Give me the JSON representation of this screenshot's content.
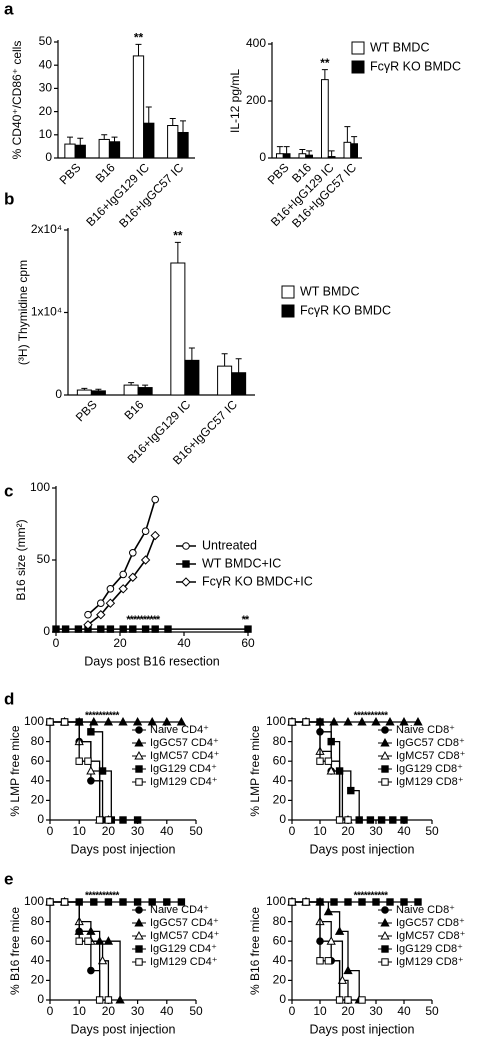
{
  "chart_data": [
    {
      "type": "bar",
      "panel": "a",
      "y_label": "% CD40⁺/CD86⁺ cells",
      "categories": [
        "PBS",
        "B16",
        "B16+IgG129 IC",
        "B16+IgGC57 IC"
      ],
      "series": [
        {
          "color": "#ffffff",
          "values": [
            6,
            8,
            44,
            14
          ],
          "errors": [
            3,
            2,
            5,
            3
          ]
        },
        {
          "color": "#000000",
          "values": [
            5.5,
            7,
            15,
            11
          ],
          "errors": [
            3,
            2,
            7,
            5
          ]
        }
      ],
      "ylim": [
        0,
        50
      ],
      "yticks": [
        0,
        10,
        20,
        30,
        40,
        50
      ],
      "annotations": [
        "**"
      ]
    },
    {
      "type": "bar",
      "y_label": "IL-12 pg/mL",
      "categories": [
        "PBS",
        "B16",
        "B16+IgG129 IC",
        "B16+IgGC57 IC"
      ],
      "series": [
        {
          "name": "WT BMDC",
          "color": "#ffffff",
          "values": [
            15,
            15,
            275,
            55
          ],
          "errors": [
            25,
            15,
            35,
            55
          ]
        },
        {
          "name": "FcγR KO BMDC",
          "color": "#000000",
          "values": [
            15,
            10,
            5,
            50
          ],
          "errors": [
            25,
            15,
            20,
            25
          ]
        }
      ],
      "ylim": [
        0,
        400
      ],
      "yticks": [
        0,
        200,
        400
      ],
      "annotations": [
        "**"
      ]
    },
    {
      "type": "bar",
      "panel": "b",
      "y_label": "(³H) Thymidine cpm",
      "categories": [
        "PBS",
        "B16",
        "B16+IgG129 IC",
        "B16+IgGC57 IC"
      ],
      "series": [
        {
          "name": "WT BMDC",
          "color": "#ffffff",
          "values": [
            600,
            1200,
            16000,
            3500
          ],
          "errors": [
            200,
            300,
            2500,
            1500
          ]
        },
        {
          "name": "FcγR KO BMDC",
          "color": "#000000",
          "values": [
            500,
            900,
            4200,
            2700
          ],
          "errors": [
            200,
            300,
            1500,
            1700
          ]
        }
      ],
      "ylim": [
        0,
        20000
      ],
      "yticks": [
        0,
        {
          "value": 10000,
          "label": "1x10⁴"
        },
        {
          "value": 20000,
          "label": "2x10⁴"
        }
      ],
      "annotations": [
        "**"
      ]
    },
    {
      "type": "line",
      "panel": "c",
      "y_label": "B16 size (mm²)",
      "x_label": "Days post B16 resection",
      "series": [
        {
          "name": "Untreated",
          "color": "#000000",
          "marker": "circle-open",
          "x": [
            10,
            14,
            17,
            21,
            24,
            28,
            31
          ],
          "values": [
            12,
            20,
            30,
            40,
            55,
            70,
            92
          ]
        },
        {
          "name": "WT BMDC+IC",
          "color": "#000000",
          "marker": "square-filled",
          "x": [
            0,
            3,
            7,
            10,
            14,
            17,
            21,
            24,
            28,
            31,
            35,
            60
          ],
          "values": [
            2,
            2,
            2,
            2,
            2,
            2,
            2,
            2,
            2,
            2,
            2,
            2
          ]
        },
        {
          "name": "FcγR KO BMDC+IC",
          "color": "#000000",
          "marker": "diamond-open",
          "x": [
            10,
            14,
            17,
            21,
            24,
            28,
            31
          ],
          "values": [
            5,
            12,
            20,
            30,
            38,
            50,
            67
          ]
        }
      ],
      "xlim": [
        0,
        60
      ],
      "xticks": [
        0,
        20,
        40,
        60
      ],
      "ylim": [
        0,
        100
      ],
      "yticks": [
        0,
        50,
        100
      ],
      "annotations": [
        "**********",
        "**"
      ]
    },
    {
      "type": "survival",
      "panel": "d",
      "y_label": "% LMP free mice",
      "x_label": "Days post injection",
      "series": [
        {
          "name": "Naive CD4⁺",
          "marker": "circle-filled",
          "x": [
            0,
            5,
            10,
            14,
            18,
            20
          ],
          "values": [
            100,
            100,
            80,
            40,
            0,
            0
          ]
        },
        {
          "name": "IgGC57 CD4⁺",
          "marker": "triangle-filled",
          "x": [
            0,
            5,
            10,
            15,
            20,
            25,
            30,
            35,
            40,
            45
          ],
          "values": [
            100,
            100,
            100,
            100,
            100,
            100,
            100,
            100,
            100,
            100
          ]
        },
        {
          "name": "IgMC57 CD4⁺",
          "marker": "triangle-open",
          "x": [
            0,
            5,
            10,
            14,
            17,
            20
          ],
          "values": [
            100,
            100,
            80,
            50,
            0,
            0
          ]
        },
        {
          "name": "IgG129 CD4⁺",
          "marker": "square-filled",
          "x": [
            0,
            5,
            10,
            14,
            18,
            21,
            25,
            30
          ],
          "values": [
            100,
            100,
            100,
            90,
            50,
            0,
            0,
            0
          ]
        },
        {
          "name": "IgM129 CD4⁺",
          "marker": "square-open",
          "x": [
            0,
            5,
            10,
            13,
            17,
            20
          ],
          "values": [
            100,
            100,
            60,
            60,
            0,
            0
          ]
        }
      ],
      "xlim": [
        0,
        50
      ],
      "xticks": [
        0,
        10,
        20,
        30,
        40,
        50
      ],
      "ylim": [
        0,
        100
      ],
      "yticks": [
        0,
        20,
        40,
        60,
        80,
        100
      ],
      "annotations": [
        "**********"
      ]
    },
    {
      "type": "survival",
      "y_label": "% LMP free mice",
      "x_label": "Days post injection",
      "series": [
        {
          "name": "Naive CD8⁺",
          "marker": "circle-filled",
          "x": [
            0,
            5,
            10,
            14,
            17,
            20
          ],
          "values": [
            100,
            100,
            90,
            50,
            0,
            0
          ]
        },
        {
          "name": "IgGC57 CD8⁺",
          "marker": "triangle-filled",
          "x": [
            0,
            5,
            10,
            15,
            20,
            25,
            30,
            35,
            40,
            45
          ],
          "values": [
            100,
            100,
            100,
            100,
            100,
            100,
            100,
            100,
            100,
            100
          ]
        },
        {
          "name": "IgMC57 CD8⁺",
          "marker": "triangle-open",
          "x": [
            0,
            5,
            10,
            14,
            18,
            20
          ],
          "values": [
            100,
            100,
            70,
            50,
            0,
            0
          ]
        },
        {
          "name": "IgG129 CD8⁺",
          "marker": "square-filled",
          "x": [
            0,
            5,
            10,
            14,
            17,
            21,
            24,
            28,
            32,
            36,
            40
          ],
          "values": [
            100,
            100,
            100,
            80,
            50,
            30,
            0,
            0,
            0,
            0,
            0
          ]
        },
        {
          "name": "IgM129 CD8⁺",
          "marker": "square-open",
          "x": [
            0,
            5,
            10,
            13,
            17,
            20
          ],
          "values": [
            100,
            100,
            60,
            60,
            0,
            0
          ]
        }
      ],
      "xlim": [
        0,
        50
      ],
      "xticks": [
        0,
        10,
        20,
        30,
        40,
        50
      ],
      "ylim": [
        0,
        100
      ],
      "yticks": [
        0,
        20,
        40,
        60,
        80,
        100
      ],
      "annotations": [
        "**********"
      ]
    },
    {
      "type": "survival",
      "panel": "e",
      "y_label": "% B16 free mice",
      "x_label": "Days post injection",
      "series": [
        {
          "name": "Naive CD4⁺",
          "marker": "circle-filled",
          "x": [
            0,
            5,
            10,
            14,
            17,
            20
          ],
          "values": [
            100,
            100,
            70,
            30,
            0,
            0
          ]
        },
        {
          "name": "IgGC57 CD4⁺",
          "marker": "triangle-filled",
          "x": [
            0,
            5,
            10,
            14,
            17,
            20,
            24
          ],
          "values": [
            100,
            100,
            70,
            70,
            60,
            60,
            0
          ]
        },
        {
          "name": "IgMC57 CD4⁺",
          "marker": "triangle-open",
          "x": [
            0,
            5,
            10,
            14,
            18,
            20
          ],
          "values": [
            100,
            100,
            80,
            60,
            40,
            0
          ]
        },
        {
          "name": "IgG129 CD4⁺",
          "marker": "square-filled",
          "x": [
            0,
            5,
            10,
            15,
            20,
            25,
            30,
            35,
            40,
            45
          ],
          "values": [
            100,
            100,
            100,
            100,
            100,
            100,
            100,
            100,
            100,
            100
          ]
        },
        {
          "name": "IgM129 CD4⁺",
          "marker": "square-open",
          "x": [
            0,
            5,
            10,
            13,
            17,
            20
          ],
          "values": [
            100,
            100,
            60,
            60,
            0,
            0
          ]
        }
      ],
      "xlim": [
        0,
        50
      ],
      "xticks": [
        0,
        10,
        20,
        30,
        40,
        50
      ],
      "ylim": [
        0,
        100
      ],
      "yticks": [
        0,
        20,
        40,
        60,
        80,
        100
      ],
      "annotations": [
        "**********"
      ]
    },
    {
      "type": "survival",
      "y_label": "% B16 free mice",
      "x_label": "Days post injection",
      "series": [
        {
          "name": "Naive CD8⁺",
          "marker": "circle-filled",
          "x": [
            0,
            5,
            10,
            14,
            17,
            20
          ],
          "values": [
            100,
            100,
            60,
            40,
            0,
            0
          ]
        },
        {
          "name": "IgGC57 CD8⁺",
          "marker": "triangle-filled",
          "x": [
            0,
            5,
            10,
            13,
            17,
            20,
            24
          ],
          "values": [
            100,
            100,
            100,
            90,
            70,
            30,
            0
          ]
        },
        {
          "name": "IgMC57 CD8⁺",
          "marker": "triangle-open",
          "x": [
            0,
            5,
            10,
            14,
            18,
            20
          ],
          "values": [
            100,
            100,
            80,
            60,
            20,
            0
          ]
        },
        {
          "name": "IgG129 CD8⁺",
          "marker": "square-filled",
          "x": [
            0,
            5,
            10,
            15,
            20,
            25,
            30,
            35,
            40,
            45
          ],
          "values": [
            100,
            100,
            100,
            100,
            100,
            100,
            100,
            100,
            100,
            100
          ]
        },
        {
          "name": "IgM129 CD8⁺",
          "marker": "square-open",
          "x": [
            0,
            5,
            10,
            13,
            17,
            20,
            25
          ],
          "values": [
            100,
            100,
            40,
            40,
            0,
            0,
            0
          ]
        }
      ],
      "xlim": [
        0,
        50
      ],
      "xticks": [
        0,
        10,
        20,
        30,
        40,
        50
      ],
      "ylim": [
        0,
        100
      ],
      "yticks": [
        0,
        20,
        40,
        60,
        80,
        100
      ],
      "annotations": [
        "**********"
      ]
    }
  ]
}
